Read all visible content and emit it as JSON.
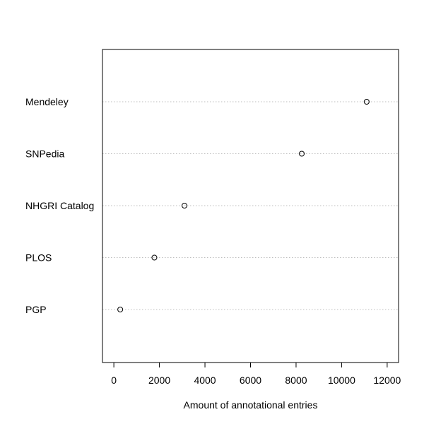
{
  "chart_data": {
    "type": "scatter",
    "style": "dotchart",
    "title": "",
    "xlabel": "Amount of annotational entries",
    "ylabel": "",
    "xlim": [
      -500,
      12500
    ],
    "xticks": [
      0,
      2000,
      4000,
      6000,
      8000,
      10000,
      12000
    ],
    "grid": "dotted horizontal guide lines per category",
    "categories": [
      "Mendeley",
      "SNPedia",
      "NHGRI Catalog",
      "PLOS",
      "PGP"
    ],
    "values": [
      11100,
      8250,
      3100,
      1780,
      280
    ],
    "colors": {
      "point_stroke": "#000000",
      "guide_line": "#bebebe",
      "axis": "#000000"
    }
  }
}
